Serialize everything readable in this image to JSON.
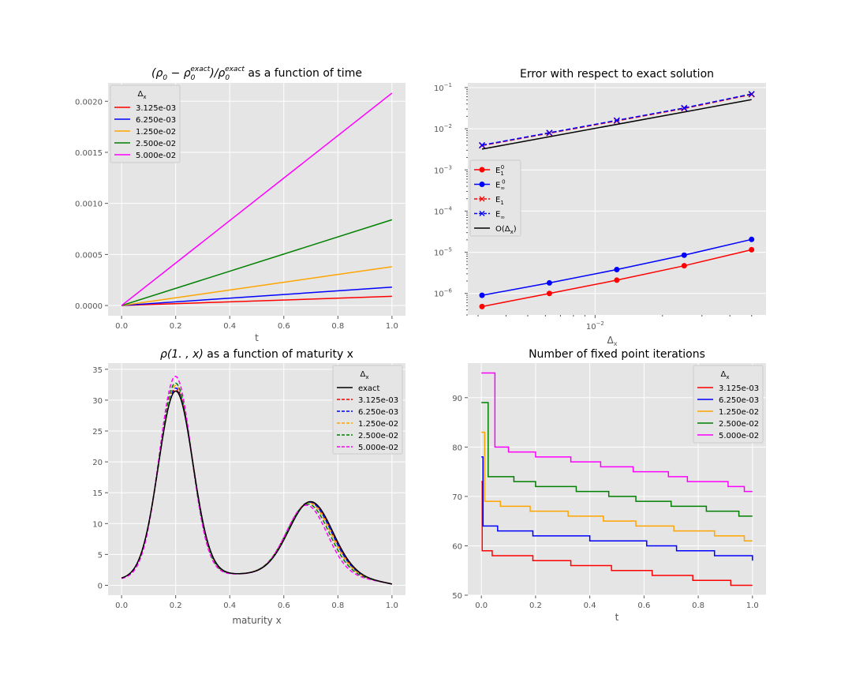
{
  "chart_data": [
    {
      "type": "line",
      "title_pre": "(ρ",
      "title_sub1": "0",
      "title_mid1": " − ρ",
      "title_sub2": "0",
      "title_sup2": "exact",
      "title_mid2": ")/ρ",
      "title_sub3": "0",
      "title_sup3": "exact",
      "title_post": " as a function of time",
      "xlabel": "t",
      "ylabel": "",
      "xlim": [
        -0.05,
        1.05
      ],
      "ylim": [
        -0.0001,
        0.00218
      ],
      "xticks": [
        0.0,
        0.2,
        0.4,
        0.6,
        0.8,
        1.0
      ],
      "xtick_labels": [
        "0.0",
        "0.2",
        "0.4",
        "0.6",
        "0.8",
        "1.0"
      ],
      "yticks": [
        0.0,
        0.0005,
        0.001,
        0.0015,
        0.002
      ],
      "ytick_labels": [
        "0.0000",
        "0.0005",
        "0.0010",
        "0.0015",
        "0.0020"
      ],
      "legend_title": "Δx",
      "legend_title_main": "Δ",
      "legend_title_sub": "x",
      "legend_position": "top-left",
      "series": [
        {
          "name": "3.125e-03",
          "color": "#ff0000",
          "x": [
            0,
            1
          ],
          "y": [
            0,
            9e-05
          ]
        },
        {
          "name": "6.250e-03",
          "color": "#0000ff",
          "x": [
            0,
            1
          ],
          "y": [
            0,
            0.00018
          ]
        },
        {
          "name": "1.250e-02",
          "color": "#ffa500",
          "x": [
            0,
            1
          ],
          "y": [
            0,
            0.00038
          ]
        },
        {
          "name": "2.500e-02",
          "color": "#008000",
          "x": [
            0,
            1
          ],
          "y": [
            0,
            0.00084
          ]
        },
        {
          "name": "5.000e-02",
          "color": "#ff00ff",
          "x": [
            0,
            1
          ],
          "y": [
            0,
            0.00208
          ]
        }
      ]
    },
    {
      "type": "line",
      "scale": "loglog",
      "title": "Error with respect to exact solution",
      "xlabel": "Δx",
      "xlabel_main": "Δ",
      "xlabel_sub": "x",
      "ylabel": "",
      "xlim": [
        0.0027,
        0.058
      ],
      "ylim": [
        3e-07,
        0.13
      ],
      "yticks": [
        1e-06,
        1e-05,
        0.0001,
        0.001,
        0.01,
        0.1
      ],
      "ytick_exponents": [
        "−6",
        "−5",
        "−4",
        "−3",
        "−2",
        "−1"
      ],
      "ytick_base": "10",
      "xticks": [
        0.01
      ],
      "xtick_exponents": [
        "−2"
      ],
      "xtick_base": "10",
      "legend_position": "center-left",
      "series": [
        {
          "name": "E_1^0",
          "label_main": "E",
          "label_sub": "1",
          "label_sup": "0",
          "color": "#ff0000",
          "dash": "",
          "marker": "circle",
          "x": [
            0.003125,
            0.00625,
            0.0125,
            0.025,
            0.05
          ],
          "y": [
            4.8e-07,
            1e-06,
            2.1e-06,
            4.7e-06,
            1.15e-05
          ]
        },
        {
          "name": "E_inf^0",
          "label_main": "E",
          "label_sub": "∞",
          "label_sup": "0",
          "color": "#0000ff",
          "dash": "",
          "marker": "circle",
          "x": [
            0.003125,
            0.00625,
            0.0125,
            0.025,
            0.05
          ],
          "y": [
            9e-07,
            1.8e-06,
            3.8e-06,
            8.5e-06,
            2.05e-05
          ]
        },
        {
          "name": "E_1",
          "label_main": "E",
          "label_sub": "1",
          "label_sup": "",
          "color": "#ff0000",
          "dash": "6,3",
          "marker": "x",
          "x": [
            0.003125,
            0.00625,
            0.0125,
            0.025,
            0.05
          ],
          "y": [
            0.0039,
            0.0078,
            0.0155,
            0.031,
            0.068
          ]
        },
        {
          "name": "E_inf",
          "label_main": "E",
          "label_sub": "∞",
          "label_sup": "",
          "color": "#0000ff",
          "dash": "6,3",
          "marker": "x",
          "x": [
            0.003125,
            0.00625,
            0.0125,
            0.025,
            0.05
          ],
          "y": [
            0.004,
            0.008,
            0.016,
            0.032,
            0.07
          ]
        },
        {
          "name": "O(Δx)",
          "label_main": "O(Δ",
          "label_sub": "x",
          "label_sup": "",
          "label_post": ")",
          "color": "#000000",
          "dash": "",
          "marker": "none",
          "x": [
            0.003125,
            0.05
          ],
          "y": [
            0.0032,
            0.051
          ]
        }
      ]
    },
    {
      "type": "line",
      "title_pre": "ρ(1. , x)",
      "title_post": " as a function of maturity x",
      "xlabel": "maturity x",
      "ylabel": "",
      "xlim": [
        -0.05,
        1.05
      ],
      "ylim": [
        -1.6,
        36
      ],
      "xticks": [
        0.0,
        0.2,
        0.4,
        0.6,
        0.8,
        1.0
      ],
      "xtick_labels": [
        "0.0",
        "0.2",
        "0.4",
        "0.6",
        "0.8",
        "1.0"
      ],
      "yticks": [
        0,
        5,
        10,
        15,
        20,
        25,
        30,
        35
      ],
      "ytick_labels": [
        "0",
        "5",
        "10",
        "15",
        "20",
        "25",
        "30",
        "35"
      ],
      "legend_title": "Δx",
      "legend_title_main": "Δ",
      "legend_title_sub": "x",
      "legend_position": "top-right",
      "model": {
        "a1": 30.0,
        "m1": 0.2,
        "s1": 0.09,
        "a2": 12.0,
        "m2": 0.7,
        "s2": 0.115,
        "base": 1.8
      },
      "series": [
        {
          "name": "exact",
          "color": "#000000",
          "dash": "",
          "a1": 30.0,
          "a2": 12.0,
          "m1": 0.2,
          "m2": 0.7,
          "s1": 0.09,
          "s2": 0.115
        },
        {
          "name": "3.125e-03",
          "color": "#ff0000",
          "dash": "5,3",
          "a1": 30.2,
          "a2": 11.95,
          "m1": 0.2,
          "m2": 0.698,
          "s1": 0.0895,
          "s2": 0.1145
        },
        {
          "name": "6.250e-03",
          "color": "#0000ff",
          "dash": "5,3",
          "a1": 30.5,
          "a2": 11.9,
          "m1": 0.2,
          "m2": 0.696,
          "s1": 0.089,
          "s2": 0.114
        },
        {
          "name": "1.250e-02",
          "color": "#ffa500",
          "dash": "5,3",
          "a1": 30.9,
          "a2": 11.8,
          "m1": 0.2,
          "m2": 0.693,
          "s1": 0.088,
          "s2": 0.113
        },
        {
          "name": "2.500e-02",
          "color": "#008000",
          "dash": "5,3",
          "a1": 31.3,
          "a2": 11.6,
          "m1": 0.199,
          "m2": 0.69,
          "s1": 0.087,
          "s2": 0.111
        },
        {
          "name": "5.000e-02",
          "color": "#ff00ff",
          "dash": "5,3",
          "a1": 32.4,
          "a2": 11.4,
          "m1": 0.199,
          "m2": 0.685,
          "s1": 0.085,
          "s2": 0.107
        }
      ]
    },
    {
      "type": "line",
      "drawstyle": "steps",
      "title": "Number of fixed point iterations",
      "xlabel": "t",
      "ylabel": "",
      "xlim": [
        -0.05,
        1.05
      ],
      "ylim": [
        50,
        97
      ],
      "xticks": [
        0.0,
        0.2,
        0.4,
        0.6,
        0.8,
        1.0
      ],
      "xtick_labels": [
        "0.0",
        "0.2",
        "0.4",
        "0.6",
        "0.8",
        "1.0"
      ],
      "yticks": [
        50,
        60,
        70,
        80,
        90
      ],
      "ytick_labels": [
        "50",
        "60",
        "70",
        "80",
        "90"
      ],
      "legend_title": "Δx",
      "legend_title_main": "Δ",
      "legend_title_sub": "x",
      "legend_position": "top-right",
      "series": [
        {
          "name": "3.125e-03",
          "color": "#ff0000",
          "x": [
            0.0,
            0.003,
            0.04,
            0.19,
            0.33,
            0.48,
            0.63,
            0.78,
            0.92,
            1.0
          ],
          "y": [
            73,
            59,
            58,
            57,
            56,
            55,
            54,
            53,
            52,
            52
          ]
        },
        {
          "name": "6.250e-03",
          "color": "#0000ff",
          "x": [
            0.0,
            0.006,
            0.06,
            0.19,
            0.4,
            0.61,
            0.72,
            0.86,
            1.0
          ],
          "y": [
            78,
            64,
            63,
            62,
            61,
            60,
            59,
            58,
            57
          ]
        },
        {
          "name": "1.250e-02",
          "color": "#ffa500",
          "x": [
            0.0,
            0.012,
            0.07,
            0.18,
            0.32,
            0.45,
            0.57,
            0.71,
            0.86,
            0.97,
            1.0
          ],
          "y": [
            83,
            69,
            68,
            67,
            66,
            65,
            64,
            63,
            62,
            61,
            61
          ]
        },
        {
          "name": "2.500e-02",
          "color": "#008000",
          "x": [
            0.0,
            0.025,
            0.12,
            0.2,
            0.35,
            0.47,
            0.57,
            0.7,
            0.83,
            0.95,
            1.0
          ],
          "y": [
            89,
            74,
            73,
            72,
            71,
            70,
            69,
            68,
            67,
            66,
            66
          ]
        },
        {
          "name": "5.000e-02",
          "color": "#ff00ff",
          "x": [
            0.0,
            0.05,
            0.1,
            0.2,
            0.33,
            0.44,
            0.5,
            0.56,
            0.63,
            0.69,
            0.76,
            0.84,
            0.91,
            0.97,
            1.0
          ],
          "y": [
            95,
            80,
            79,
            78,
            77,
            76,
            76,
            75,
            75,
            74,
            73,
            73,
            72,
            71,
            71
          ]
        }
      ]
    }
  ]
}
